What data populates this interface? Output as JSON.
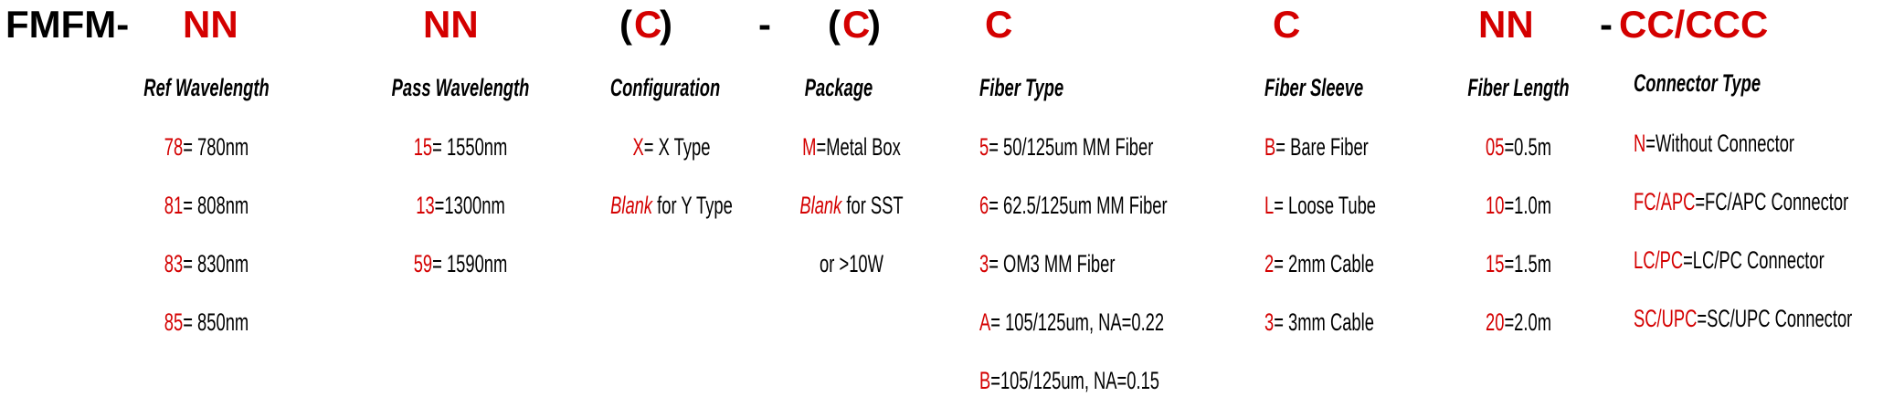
{
  "part_number": [
    {
      "text": "FMFM-",
      "color": "black"
    },
    {
      "text": "NN",
      "color": "red"
    },
    {
      "text": "NN",
      "color": "red"
    },
    {
      "text": "(",
      "color": "black"
    },
    {
      "text": "C",
      "color": "red"
    },
    {
      "text": ")",
      "color": "black"
    },
    {
      "text": "-",
      "color": "black"
    },
    {
      "text": "(",
      "color": "black"
    },
    {
      "text": "C",
      "color": "red"
    },
    {
      "text": ")",
      "color": "black"
    },
    {
      "text": "C",
      "color": "red"
    },
    {
      "text": "C",
      "color": "red"
    },
    {
      "text": "NN",
      "color": "red"
    },
    {
      "text": "-",
      "color": "black"
    },
    {
      "text": "CC/CCC",
      "color": "red"
    }
  ],
  "colors": {
    "code": "#d40000",
    "text": "#000000"
  },
  "columns": [
    {
      "header": "Ref Wavelength",
      "items": [
        {
          "code": "78",
          "desc": "= 780nm"
        },
        {
          "code": "81",
          "desc": "= 808nm"
        },
        {
          "code": "83",
          "desc": "= 830nm"
        },
        {
          "code": "85",
          "desc": "= 850nm"
        }
      ]
    },
    {
      "header": "Pass Wavelength",
      "items": [
        {
          "code": "15",
          "desc": "= 1550nm"
        },
        {
          "code": "13",
          "desc": "=1300nm"
        },
        {
          "code": "59",
          "desc": "= 1590nm"
        }
      ]
    },
    {
      "header": "Configuration",
      "items": [
        {
          "code": "X",
          "desc": "= X Type"
        },
        {
          "code": "Blank",
          "italic": true,
          "desc": " for Y Type"
        }
      ]
    },
    {
      "header": "Package",
      "items": [
        {
          "code": "M",
          "desc": "=Metal Box"
        },
        {
          "code": "Blank",
          "italic": true,
          "desc": " for SST"
        },
        {
          "code": "",
          "desc": "or >10W"
        }
      ]
    },
    {
      "header": "Fiber Type",
      "items": [
        {
          "code": "5",
          "desc": "= 50/125um MM Fiber"
        },
        {
          "code": "6",
          "desc": "= 62.5/125um MM Fiber"
        },
        {
          "code": "3",
          "desc": "= OM3 MM Fiber"
        },
        {
          "code": "A",
          "desc": "= 105/125um, NA=0.22"
        },
        {
          "code": "B",
          "desc": "=105/125um, NA=0.15"
        }
      ]
    },
    {
      "header": "Fiber Sleeve",
      "items": [
        {
          "code": "B",
          "desc": "= Bare Fiber"
        },
        {
          "code": "L",
          "desc": "= Loose Tube"
        },
        {
          "code": "2",
          "desc": "= 2mm Cable"
        },
        {
          "code": "3",
          "desc": "= 3mm Cable"
        }
      ]
    },
    {
      "header": "Fiber Length",
      "items": [
        {
          "code": "05",
          "desc": "=0.5m"
        },
        {
          "code": "10",
          "desc": "=1.0m"
        },
        {
          "code": "15",
          "desc": "=1.5m"
        },
        {
          "code": "20",
          "desc": "=2.0m"
        }
      ]
    },
    {
      "header": "Connector Type",
      "items": [
        {
          "code": "N",
          "desc": "=Without Connector"
        },
        {
          "code": "FC/APC",
          "desc": "=FC/APC Connector"
        },
        {
          "code": "LC/PC",
          "desc": "=LC/PC Connector"
        },
        {
          "code": "SC/UPC",
          "desc": "=SC/UPC Connector"
        }
      ]
    }
  ]
}
